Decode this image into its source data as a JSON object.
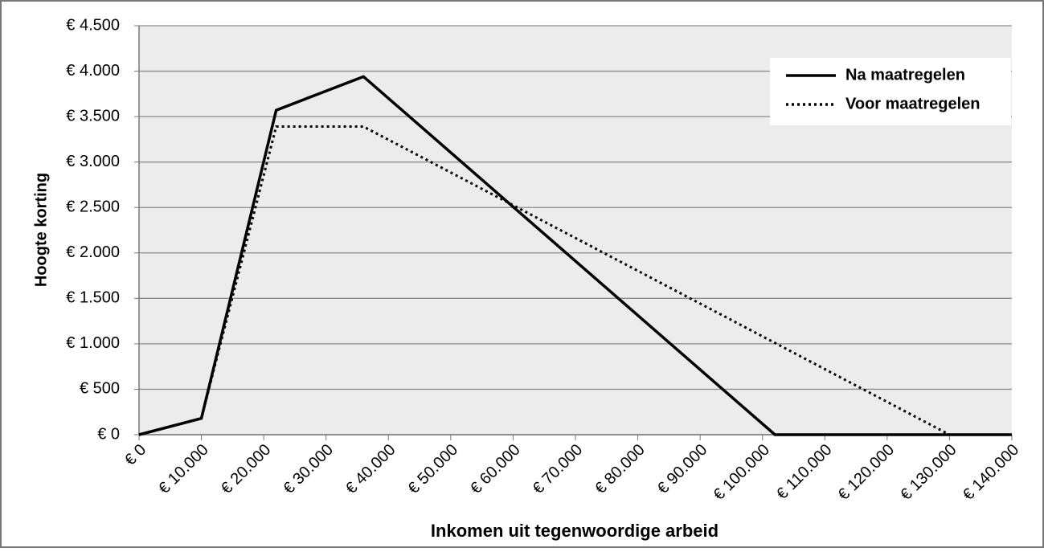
{
  "chart_data": {
    "type": "line",
    "x_label": "Inkomen uit tegenwoordige arbeid",
    "y_label": "Hoogte korting",
    "series": [
      {
        "name": "Na maatregelen",
        "color": "#000000",
        "style": "solid",
        "x": [
          0,
          10000,
          22000,
          36000,
          102000,
          140000
        ],
        "values": [
          0,
          180,
          3570,
          3940,
          0,
          0
        ]
      },
      {
        "name": "Voor maatregelen",
        "color": "#000000",
        "style": "dotted",
        "x": [
          0,
          10000,
          22000,
          36000,
          130000,
          140000
        ],
        "values": [
          0,
          180,
          3390,
          3390,
          0,
          0
        ]
      }
    ],
    "xlim": [
      0,
      140000
    ],
    "xticks": [
      {
        "value": 0,
        "label": "€ 0"
      },
      {
        "value": 10000,
        "label": "€ 10.000"
      },
      {
        "value": 20000,
        "label": "€ 20.000"
      },
      {
        "value": 30000,
        "label": "€ 30.000"
      },
      {
        "value": 40000,
        "label": "€ 40.000"
      },
      {
        "value": 50000,
        "label": "€ 50.000"
      },
      {
        "value": 60000,
        "label": "€ 60.000"
      },
      {
        "value": 70000,
        "label": "€ 70.000"
      },
      {
        "value": 80000,
        "label": "€ 80.000"
      },
      {
        "value": 90000,
        "label": "€ 90.000"
      },
      {
        "value": 100000,
        "label": "€ 100.000"
      },
      {
        "value": 110000,
        "label": "€ 110.000"
      },
      {
        "value": 120000,
        "label": "€ 120.000"
      },
      {
        "value": 130000,
        "label": "€ 130.000"
      },
      {
        "value": 140000,
        "label": "€ 140.000"
      }
    ],
    "ylim": [
      0,
      4500
    ],
    "yticks": [
      {
        "value": 0,
        "label": "€ 0"
      },
      {
        "value": 500,
        "label": "€ 500"
      },
      {
        "value": 1000,
        "label": "€ 1.000"
      },
      {
        "value": 1500,
        "label": "€ 1.500"
      },
      {
        "value": 2000,
        "label": "€ 2.000"
      },
      {
        "value": 2500,
        "label": "€ 2.500"
      },
      {
        "value": 3000,
        "label": "€ 3.000"
      },
      {
        "value": 3500,
        "label": "€ 3.500"
      },
      {
        "value": 4000,
        "label": "€ 4.000"
      },
      {
        "value": 4500,
        "label": "€ 4.500"
      }
    ],
    "grid": true,
    "legend": "top-right"
  }
}
